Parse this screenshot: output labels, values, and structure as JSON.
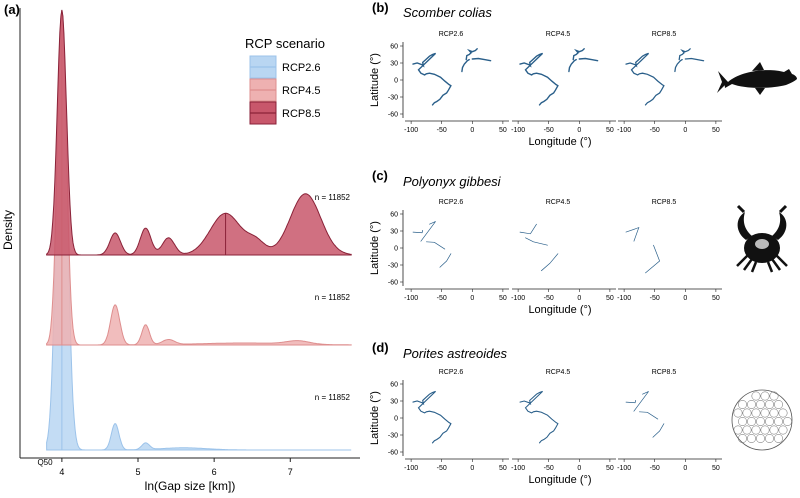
{
  "panel_a": {
    "letter": "(a)",
    "ylabel": "Density",
    "xlabel": "ln(Gap size [km])",
    "q50_label": "Q50",
    "legend": {
      "title": "RCP scenario",
      "items": [
        {
          "label": "RCP2.6",
          "fill": "#b9d6f2",
          "stroke": "#9cc3ea"
        },
        {
          "label": "RCP4.5",
          "fill": "#eeb1b1",
          "stroke": "#de8e8e"
        },
        {
          "label": "RCP8.5",
          "fill": "#c8576b",
          "stroke": "#8a2238"
        }
      ]
    },
    "chart_data": {
      "type": "area",
      "xlabel": "ln(Gap size [km])",
      "ylabel": "Density",
      "xlim": [
        3.45,
        7.85
      ],
      "x_ticks": [
        4,
        5,
        6,
        7
      ],
      "series": [
        {
          "name": "RCP2.6",
          "n_label": "n = 11852",
          "median": 4.0,
          "peaks": [
            [
              4.0,
              1.0,
              0.07
            ],
            [
              4.7,
              0.06,
              0.05
            ],
            [
              5.1,
              0.015,
              0.05
            ],
            [
              5.6,
              0.005,
              0.3
            ]
          ]
        },
        {
          "name": "RCP4.5",
          "n_label": "n = 11852",
          "median": 4.0,
          "peaks": [
            [
              4.0,
              1.0,
              0.06
            ],
            [
              4.7,
              0.12,
              0.06
            ],
            [
              5.1,
              0.06,
              0.05
            ],
            [
              5.4,
              0.015,
              0.08
            ],
            [
              6.4,
              0.006,
              0.6
            ],
            [
              7.1,
              0.01,
              0.15
            ]
          ]
        },
        {
          "name": "RCP8.5",
          "n_label": "n = 11852",
          "median": 6.15,
          "peaks": [
            [
              4.0,
              1.0,
              0.06
            ],
            [
              4.7,
              0.09,
              0.07
            ],
            [
              5.1,
              0.11,
              0.07
            ],
            [
              5.4,
              0.07,
              0.08
            ],
            [
              6.15,
              0.17,
              0.2
            ],
            [
              6.55,
              0.05,
              0.12
            ],
            [
              7.2,
              0.25,
              0.2
            ]
          ]
        }
      ]
    }
  },
  "maps": {
    "ylabel": "Latitude (°)",
    "xlabel": "Longitude (°)",
    "y_ticks": [
      "60",
      "30",
      "0",
      "-30",
      "-60"
    ],
    "x_ticks": [
      "-100",
      "-50",
      "0",
      "50"
    ],
    "scenario_titles": [
      "RCP2.6",
      "RCP4.5",
      "RCP8.5"
    ],
    "line_color": "#2a5f8a"
  },
  "panels": [
    {
      "letter": "(b)",
      "species": "Scomber colias",
      "icon": "fish-silhouette-icon",
      "density": [
        1.0,
        1.0,
        0.9
      ]
    },
    {
      "letter": "(c)",
      "species": "Polyonyx gibbesi",
      "icon": "crab-silhouette-icon",
      "density": [
        0.45,
        0.25,
        0.2
      ]
    },
    {
      "letter": "(d)",
      "species": "Porites astreoides",
      "icon": "coral-sketch-icon",
      "density": [
        0.8,
        0.75,
        0.35
      ]
    }
  ]
}
